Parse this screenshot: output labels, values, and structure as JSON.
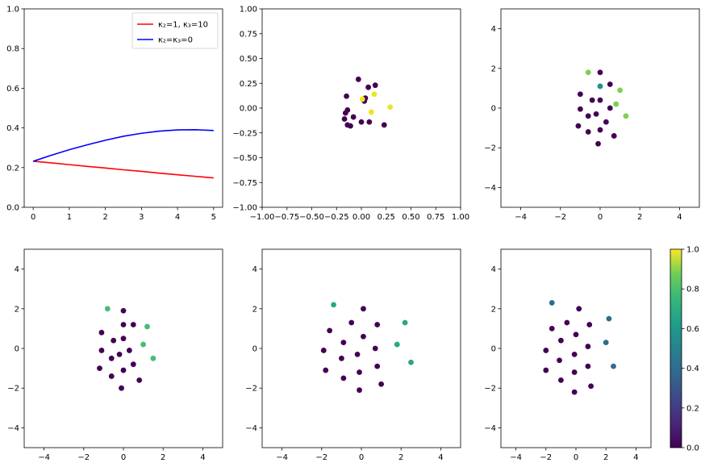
{
  "chart_data": [
    {
      "type": "line",
      "xlim": [
        -0.25,
        5.25
      ],
      "ylim": [
        0,
        1
      ],
      "xticks": [
        0,
        1,
        2,
        3,
        4,
        5
      ],
      "yticks": [
        0.0,
        0.2,
        0.4,
        0.6,
        0.8,
        1.0
      ],
      "xtick_labels": [
        "0",
        "1",
        "2",
        "3",
        "4",
        "5"
      ],
      "ytick_labels": [
        "0.0",
        "0.2",
        "0.4",
        "0.6",
        "0.8",
        "1.0"
      ],
      "legend_position": "top-right",
      "series": [
        {
          "name": "κ₂=1, κ₃=10",
          "color": "#ff0000",
          "x": [
            0,
            0.5,
            1,
            1.5,
            2,
            2.5,
            3,
            3.5,
            4,
            4.5,
            5
          ],
          "y": [
            0.232,
            0.224,
            0.215,
            0.206,
            0.198,
            0.189,
            0.181,
            0.172,
            0.164,
            0.156,
            0.148
          ]
        },
        {
          "name": "κ₂=κ₃=0",
          "color": "#0000ff",
          "x": [
            0,
            0.5,
            1,
            1.5,
            2,
            2.5,
            3,
            3.5,
            4,
            4.5,
            5
          ],
          "y": [
            0.232,
            0.262,
            0.29,
            0.315,
            0.338,
            0.358,
            0.373,
            0.384,
            0.39,
            0.391,
            0.387
          ]
        }
      ]
    },
    {
      "type": "scatter",
      "xlim": [
        -1,
        1
      ],
      "ylim": [
        -1,
        1
      ],
      "xticks": [
        -1,
        -0.75,
        -0.5,
        -0.25,
        0,
        0.25,
        0.5,
        0.75,
        1
      ],
      "yticks": [
        -1,
        -0.75,
        -0.5,
        -0.25,
        0,
        0.25,
        0.5,
        0.75,
        1
      ],
      "xtick_labels": [
        "−1.00",
        "−0.75",
        "−0.50",
        "−0.25",
        "0.00",
        "0.25",
        "0.50",
        "0.75",
        "1.00"
      ],
      "ytick_labels": [
        "−1.00",
        "−0.75",
        "−0.50",
        "−0.25",
        "0.00",
        "0.25",
        "0.50",
        "0.75",
        "1.00"
      ],
      "points": [
        [
          -0.03,
          0.29,
          0.0
        ],
        [
          0.07,
          0.21,
          0.0
        ],
        [
          0.14,
          0.23,
          0.0
        ],
        [
          -0.15,
          0.12,
          0.0
        ],
        [
          0.02,
          0.09,
          0.0
        ],
        [
          0.03,
          0.07,
          0.0
        ],
        [
          -0.14,
          -0.02,
          0.0
        ],
        [
          -0.16,
          -0.05,
          0.0
        ],
        [
          -0.08,
          -0.09,
          0.0
        ],
        [
          -0.17,
          -0.11,
          0.0
        ],
        [
          -0.14,
          -0.17,
          0.0
        ],
        [
          -0.11,
          -0.18,
          0.0
        ],
        [
          0.0,
          -0.14,
          0.0
        ],
        [
          0.08,
          -0.14,
          0.0
        ],
        [
          0.23,
          -0.17,
          0.0
        ],
        [
          0.04,
          0.1,
          0.0
        ],
        [
          0.01,
          0.09,
          0.98
        ],
        [
          0.13,
          0.14,
          0.97
        ],
        [
          0.29,
          0.01,
          0.97
        ],
        [
          0.1,
          -0.04,
          0.97
        ]
      ]
    },
    {
      "type": "scatter",
      "xlim": [
        -5,
        5
      ],
      "ylim": [
        -5,
        5
      ],
      "xticks": [
        -4,
        -2,
        0,
        2,
        4
      ],
      "yticks": [
        -4,
        -2,
        0,
        2,
        4
      ],
      "xtick_labels": [
        "−4",
        "−2",
        "0",
        "2",
        "4"
      ],
      "ytick_labels": [
        "−4",
        "−2",
        "0",
        "2",
        "4"
      ],
      "points": [
        [
          -0.6,
          1.8,
          0.8
        ],
        [
          1.0,
          0.9,
          0.8
        ],
        [
          0.8,
          0.2,
          0.8
        ],
        [
          1.3,
          -0.4,
          0.8
        ],
        [
          0.0,
          1.8,
          0.0
        ],
        [
          0.0,
          1.1,
          0.5
        ],
        [
          0.5,
          1.2,
          0.0
        ],
        [
          -1.0,
          0.7,
          0.0
        ],
        [
          -0.4,
          0.4,
          0.0
        ],
        [
          0.0,
          0.4,
          0.0
        ],
        [
          -1.0,
          -0.05,
          0.0
        ],
        [
          0.5,
          0.0,
          0.0
        ],
        [
          -0.6,
          -0.4,
          0.0
        ],
        [
          -0.2,
          -0.3,
          0.0
        ],
        [
          0.3,
          -0.7,
          0.0
        ],
        [
          -1.1,
          -0.9,
          0.0
        ],
        [
          -0.6,
          -1.2,
          0.0
        ],
        [
          0.0,
          -1.1,
          0.0
        ],
        [
          0.7,
          -1.4,
          0.0
        ],
        [
          -0.1,
          -1.8,
          0.0
        ]
      ]
    },
    {
      "type": "scatter",
      "xlim": [
        -5,
        5
      ],
      "ylim": [
        -5,
        5
      ],
      "xticks": [
        -4,
        -2,
        0,
        2,
        4
      ],
      "yticks": [
        -4,
        -2,
        0,
        2,
        4
      ],
      "xtick_labels": [
        "−4",
        "−2",
        "0",
        "2",
        "4"
      ],
      "ytick_labels": [
        "−4",
        "−2",
        "0",
        "2",
        "4"
      ],
      "points": [
        [
          -0.8,
          2.0,
          0.7
        ],
        [
          1.2,
          1.1,
          0.7
        ],
        [
          1.0,
          0.2,
          0.7
        ],
        [
          1.5,
          -0.5,
          0.7
        ],
        [
          0.0,
          1.9,
          0.0
        ],
        [
          0.0,
          1.2,
          0.0
        ],
        [
          0.5,
          1.2,
          0.0
        ],
        [
          -1.1,
          0.8,
          0.0
        ],
        [
          -0.5,
          0.4,
          0.0
        ],
        [
          0.0,
          0.5,
          0.0
        ],
        [
          -1.1,
          -0.1,
          0.0
        ],
        [
          0.3,
          -0.1,
          0.0
        ],
        [
          -0.6,
          -0.5,
          0.0
        ],
        [
          -0.2,
          -0.3,
          0.0
        ],
        [
          0.5,
          -0.8,
          0.0
        ],
        [
          -1.2,
          -1.0,
          0.0
        ],
        [
          -0.6,
          -1.4,
          0.0
        ],
        [
          0.0,
          -1.1,
          0.0
        ],
        [
          0.8,
          -1.6,
          0.0
        ],
        [
          -0.1,
          -2.0,
          0.0
        ]
      ]
    },
    {
      "type": "scatter",
      "xlim": [
        -5,
        5
      ],
      "ylim": [
        -5,
        5
      ],
      "xticks": [
        -4,
        -2,
        0,
        2,
        4
      ],
      "yticks": [
        -4,
        -2,
        0,
        2,
        4
      ],
      "xtick_labels": [
        "−4",
        "−2",
        "0",
        "2",
        "4"
      ],
      "ytick_labels": [
        "−4",
        "−2",
        "0",
        "2",
        "4"
      ],
      "points": [
        [
          -1.4,
          2.2,
          0.6
        ],
        [
          2.2,
          1.3,
          0.6
        ],
        [
          1.8,
          0.2,
          0.6
        ],
        [
          2.5,
          -0.7,
          0.6
        ],
        [
          0.1,
          2.0,
          0.0
        ],
        [
          -0.5,
          1.3,
          0.0
        ],
        [
          0.8,
          1.2,
          0.0
        ],
        [
          -1.6,
          0.9,
          0.0
        ],
        [
          -0.9,
          0.3,
          0.0
        ],
        [
          0.1,
          0.6,
          0.0
        ],
        [
          -1.9,
          -0.1,
          0.0
        ],
        [
          0.7,
          0.0,
          0.0
        ],
        [
          -1.0,
          -0.5,
          0.0
        ],
        [
          -0.2,
          -0.3,
          0.0
        ],
        [
          0.8,
          -0.9,
          0.0
        ],
        [
          -1.8,
          -1.1,
          0.0
        ],
        [
          -0.9,
          -1.5,
          0.0
        ],
        [
          -0.1,
          -1.2,
          0.0
        ],
        [
          1.0,
          -1.8,
          0.0
        ],
        [
          -0.1,
          -2.1,
          0.0
        ]
      ]
    },
    {
      "type": "scatter",
      "xlim": [
        -5,
        5
      ],
      "ylim": [
        -5,
        5
      ],
      "xticks": [
        -4,
        -2,
        0,
        2,
        4
      ],
      "yticks": [
        -4,
        -2,
        0,
        2,
        4
      ],
      "xtick_labels": [
        "−4",
        "−2",
        "0",
        "2",
        "4"
      ],
      "ytick_labels": [
        "−4",
        "−2",
        "0",
        "2",
        "4"
      ],
      "points": [
        [
          -1.6,
          2.3,
          0.35
        ],
        [
          2.2,
          1.5,
          0.35
        ],
        [
          2.0,
          0.3,
          0.35
        ],
        [
          2.5,
          -0.9,
          0.35
        ],
        [
          0.2,
          2.0,
          0.0
        ],
        [
          -0.6,
          1.3,
          0.0
        ],
        [
          0.9,
          1.2,
          0.0
        ],
        [
          -1.6,
          1.0,
          0.0
        ],
        [
          -1.0,
          0.4,
          0.0
        ],
        [
          0.0,
          0.7,
          0.0
        ],
        [
          -2.0,
          -0.1,
          0.0
        ],
        [
          0.8,
          0.1,
          0.0
        ],
        [
          -1.1,
          -0.6,
          0.0
        ],
        [
          -0.1,
          -0.3,
          0.0
        ],
        [
          0.8,
          -0.9,
          0.0
        ],
        [
          -2.0,
          -1.1,
          0.0
        ],
        [
          -1.0,
          -1.6,
          0.0
        ],
        [
          -0.1,
          -1.2,
          0.0
        ],
        [
          1.0,
          -1.9,
          0.0
        ],
        [
          -0.1,
          -2.2,
          0.0
        ]
      ]
    }
  ],
  "colorbar": {
    "range": [
      0,
      1
    ],
    "ticks": [
      0,
      0.2,
      0.4,
      0.6,
      0.8,
      1.0
    ],
    "tick_labels": [
      "0.0",
      "0.2",
      "0.4",
      "0.6",
      "0.8",
      "1.0"
    ],
    "colormap": "viridis"
  }
}
